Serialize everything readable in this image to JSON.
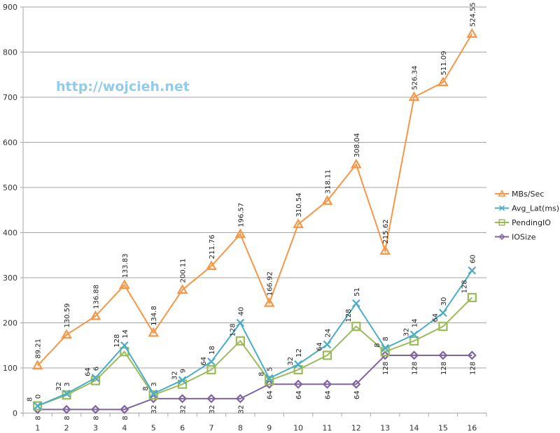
{
  "chart_data": {
    "type": "line",
    "stacked": true,
    "title": "",
    "xlabel": "",
    "ylabel": "",
    "categories": [
      "1",
      "2",
      "3",
      "4",
      "5",
      "6",
      "7",
      "8",
      "9",
      "10",
      "11",
      "12",
      "13",
      "14",
      "15",
      "16"
    ],
    "ylim": [
      0,
      900
    ],
    "yticks": [
      0,
      100,
      200,
      300,
      400,
      500,
      600,
      700,
      800,
      900
    ],
    "grid": true,
    "legend_position": "right",
    "watermark": "http://wojcieh.net",
    "series": [
      {
        "name": "IOSize",
        "color": "#8064A2",
        "marker": "diamond",
        "values": [
          8,
          8,
          8,
          8,
          32,
          32,
          32,
          32,
          64,
          64,
          64,
          64,
          128,
          128,
          128,
          128
        ]
      },
      {
        "name": "PendingIO",
        "color": "#9BBB59",
        "marker": "square",
        "values": [
          8,
          32,
          64,
          128,
          8,
          32,
          64,
          128,
          8,
          32,
          64,
          128,
          8,
          32,
          64,
          128
        ]
      },
      {
        "name": "Avg_Lat(ms)",
        "color": "#4BACC6",
        "marker": "x",
        "values": [
          0,
          3,
          6,
          14,
          3,
          9,
          18,
          40,
          5,
          12,
          24,
          51,
          8,
          14,
          30,
          60
        ]
      },
      {
        "name": "MBs/Sec",
        "color": "#F79646",
        "marker": "triangle",
        "values": [
          89.21,
          130.59,
          136.88,
          133.83,
          134.8,
          200.11,
          211.76,
          196.57,
          166.92,
          310.54,
          318.11,
          308.04,
          215.62,
          526.34,
          511.09,
          524.55
        ]
      }
    ],
    "legend_order": [
      "MBs/Sec",
      "Avg_Lat(ms)",
      "PendingIO",
      "IOSize"
    ]
  }
}
